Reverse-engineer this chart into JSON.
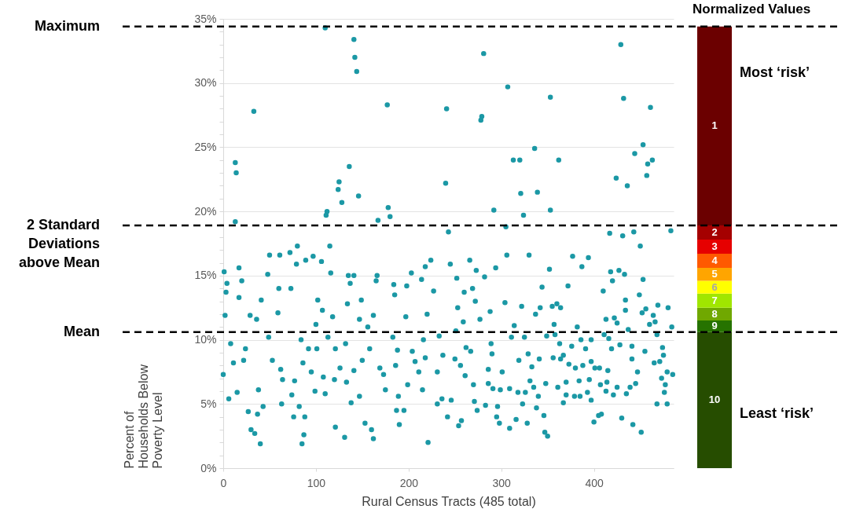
{
  "chart_data": [
    {
      "type": "scatter",
      "xlabel": "Rural Census Tracts (485 total)",
      "ylabel": "Percent of Households Below Poverty Level",
      "color": "#1b98a5",
      "marker": "circle",
      "grid": "y",
      "xlim": [
        0,
        486
      ],
      "xticks": [
        0,
        100,
        200,
        300,
        400
      ],
      "ylim": [
        0,
        35
      ],
      "yticks": [
        {
          "value": 0,
          "label": "0%"
        },
        {
          "value": 1,
          "label": null
        },
        {
          "value": 2,
          "label": null
        },
        {
          "value": 3,
          "label": null
        },
        {
          "value": 4,
          "label": null
        },
        {
          "value": 5,
          "label": "5%"
        },
        {
          "value": 6,
          "label": null
        },
        {
          "value": 7,
          "label": null
        },
        {
          "value": 8,
          "label": null
        },
        {
          "value": 9,
          "label": null
        },
        {
          "value": 10,
          "label": "10%"
        },
        {
          "value": 11,
          "label": null
        },
        {
          "value": 12,
          "label": null
        },
        {
          "value": 13,
          "label": null
        },
        {
          "value": 14,
          "label": null
        },
        {
          "value": 15,
          "label": "15%"
        },
        {
          "value": 16,
          "label": null
        },
        {
          "value": 17,
          "label": null
        },
        {
          "value": 18,
          "label": null
        },
        {
          "value": 19,
          "label": null
        },
        {
          "value": 20,
          "label": "20%"
        },
        {
          "value": 21,
          "label": null
        },
        {
          "value": 22,
          "label": null
        },
        {
          "value": 23,
          "label": null
        },
        {
          "value": 24,
          "label": null
        },
        {
          "value": 25,
          "label": "25%"
        },
        {
          "value": 26,
          "label": null
        },
        {
          "value": 27,
          "label": null
        },
        {
          "value": 28,
          "label": null
        },
        {
          "value": 29,
          "label": null
        },
        {
          "value": 30,
          "label": "30%"
        },
        {
          "value": 31,
          "label": null
        },
        {
          "value": 32,
          "label": null
        },
        {
          "value": 33,
          "label": null
        },
        {
          "value": 34,
          "label": null
        },
        {
          "value": 35,
          "label": "35%"
        }
      ],
      "ref_lines": [
        {
          "axis": "y",
          "value": 34.4,
          "label": "Maximum",
          "color": "#000000",
          "line_style": "dashed"
        },
        {
          "axis": "y",
          "value": 18.9,
          "label": "2 Standard Deviations above Mean",
          "color": "#000000",
          "line_style": "dashed"
        },
        {
          "axis": "y",
          "value": 10.6,
          "label": "Mean",
          "color": "#000000",
          "line_style": "dashed"
        }
      ],
      "x": [
        110,
        141,
        142,
        144,
        33,
        13,
        14,
        13,
        136,
        125,
        124,
        128,
        146,
        112,
        111,
        177,
        178,
        180,
        167,
        241,
        240,
        243,
        281,
        279,
        278,
        307,
        313,
        320,
        353,
        336,
        362,
        321,
        339,
        292,
        324,
        353,
        305,
        429,
        432,
        461,
        453,
        444,
        463,
        458,
        424,
        457,
        436,
        417,
        431,
        443,
        483,
        1,
        4,
        3,
        2,
        8,
        0,
        6,
        17,
        20,
        17,
        11,
        15,
        22,
        24,
        29,
        27,
        30,
        34,
        40,
        36,
        41,
        48,
        50,
        61,
        60,
        72,
        80,
        79,
        73,
        59,
        49,
        53,
        62,
        64,
        63,
        38,
        43,
        37,
        74,
        76,
        87,
        85,
        88,
        82,
        77,
        86,
        92,
        84,
        89,
        97,
        106,
        102,
        107,
        100,
        101,
        95,
        99,
        108,
        110,
        115,
        116,
        113,
        118,
        121,
        120,
        121,
        131,
        126,
        133,
        132,
        134,
        135,
        141,
        137,
        138,
        141,
        149,
        147,
        150,
        147,
        153,
        160,
        162,
        158,
        156,
        166,
        165,
        162,
        169,
        175,
        173,
        184,
        185,
        183,
        188,
        186,
        189,
        190,
        195,
        187,
        198,
        203,
        197,
        204,
        207,
        199,
        214,
        218,
        224,
        227,
        220,
        216,
        218,
        211,
        215,
        221,
        231,
        236,
        242,
        233,
        231,
        237,
        245,
        252,
        260,
        266,
        273,
        269,
        272,
        253,
        277,
        259,
        251,
        262,
        267,
        250,
        256,
        261,
        270,
        246,
        271,
        274,
        257,
        254,
        282,
        294,
        288,
        289,
        290,
        286,
        286,
        291,
        299,
        296,
        295,
        298,
        283,
        306,
        304,
        311,
        314,
        301,
        309,
        318,
        316,
        309,
        319,
        330,
        322,
        325,
        329,
        333,
        331,
        326,
        323,
        328,
        337,
        342,
        344,
        341,
        335,
        340,
        338,
        346,
        347,
        350,
        348,
        349,
        352,
        355,
        360,
        364,
        357,
        358,
        356,
        363,
        361,
        367,
        372,
        377,
        387,
        394,
        376,
        364,
        367,
        373,
        370,
        370,
        380,
        382,
        386,
        391,
        388,
        384,
        379,
        385,
        395,
        397,
        397,
        393,
        397,
        400,
        405,
        408,
        401,
        406,
        407,
        413,
        415,
        414,
        421,
        425,
        410,
        413,
        411,
        416,
        419,
        418,
        420,
        427,
        433,
        434,
        434,
        428,
        422,
        425,
        430,
        435,
        439,
        441,
        441,
        437,
        450,
        453,
        449,
        452,
        460,
        456,
        464,
        468,
        466,
        469,
        480,
        484,
        455,
        447,
        445,
        442,
        451,
        474,
        475,
        465,
        471,
        473,
        477,
        476,
        479,
        485,
        468,
        479
      ],
      "values": [
        34.3,
        33.4,
        32.0,
        30.9,
        27.8,
        23.8,
        23.0,
        19.2,
        23.5,
        22.3,
        21.7,
        20.7,
        21.2,
        20.0,
        19.7,
        28.3,
        20.3,
        19.6,
        19.3,
        28.0,
        22.2,
        18.4,
        32.3,
        27.4,
        27.1,
        29.7,
        24.0,
        24.0,
        28.9,
        24.9,
        24.0,
        21.4,
        21.5,
        20.1,
        19.7,
        20.1,
        18.8,
        33.0,
        28.8,
        28.1,
        25.2,
        24.5,
        24.0,
        23.7,
        22.6,
        22.8,
        22.0,
        18.3,
        18.1,
        18.4,
        18.5,
        15.3,
        14.4,
        13.7,
        11.9,
        9.7,
        7.3,
        5.4,
        15.6,
        14.6,
        13.3,
        8.2,
        5.9,
        8.4,
        9.3,
        11.9,
        4.4,
        3.0,
        2.7,
        1.9,
        11.6,
        13.1,
        15.1,
        16.6,
        16.6,
        14.0,
        16.8,
        17.3,
        15.9,
        14.0,
        12.1,
        10.2,
        8.4,
        7.7,
        6.9,
        5.0,
        6.1,
        4.8,
        4.2,
        5.7,
        4.0,
        2.6,
        1.9,
        4.0,
        4.8,
        6.8,
        8.2,
        9.3,
        10.0,
        16.2,
        16.5,
        16.1,
        13.1,
        12.3,
        11.2,
        9.3,
        7.5,
        6.0,
        7.1,
        5.8,
        17.3,
        15.2,
        10.2,
        11.8,
        9.3,
        6.9,
        3.2,
        2.4,
        7.8,
        6.7,
        9.7,
        12.8,
        15.0,
        15.0,
        14.4,
        5.1,
        7.6,
        13.1,
        11.6,
        8.4,
        5.6,
        3.5,
        3.0,
        2.3,
        9.3,
        11.0,
        15.0,
        14.6,
        11.9,
        7.8,
        6.1,
        7.3,
        14.3,
        13.5,
        10.2,
        9.2,
        8.0,
        5.6,
        3.4,
        4.5,
        4.5,
        14.2,
        15.2,
        11.8,
        9.1,
        8.3,
        6.5,
        14.7,
        15.7,
        16.2,
        13.8,
        12.0,
        10.0,
        8.6,
        7.5,
        6.1,
        2.0,
        5.0,
        5.4,
        4.0,
        10.3,
        7.5,
        8.8,
        15.9,
        14.8,
        13.7,
        16.2,
        15.4,
        14.0,
        13.0,
        12.5,
        11.6,
        11.4,
        10.7,
        9.4,
        9.1,
        8.5,
        8.0,
        7.2,
        6.5,
        5.3,
        5.2,
        4.5,
        3.7,
        3.3,
        14.9,
        15.6,
        12.2,
        9.7,
        8.9,
        7.7,
        6.6,
        6.2,
        6.1,
        4.8,
        4.0,
        3.5,
        4.9,
        16.6,
        12.9,
        10.2,
        11.1,
        7.5,
        6.2,
        5.9,
        3.8,
        3.1,
        8.4,
        16.6,
        12.6,
        10.2,
        8.9,
        7.9,
        6.8,
        5.9,
        5.0,
        3.5,
        12.0,
        12.5,
        14.1,
        8.5,
        6.3,
        5.6,
        4.7,
        4.1,
        2.8,
        2.5,
        6.6,
        10.3,
        15.5,
        12.6,
        12.8,
        12.5,
        11.2,
        10.4,
        8.6,
        9.7,
        6.3,
        5.1,
        14.2,
        16.5,
        15.7,
        16.4,
        9.5,
        8.5,
        8.8,
        8.1,
        6.7,
        5.7,
        7.8,
        11.0,
        10.0,
        9.3,
        8.0,
        6.8,
        5.6,
        5.6,
        6.9,
        8.3,
        10.0,
        5.9,
        5.3,
        3.6,
        4.1,
        4.2,
        7.8,
        7.8,
        6.5,
        6.0,
        7.6,
        6.7,
        5.7,
        6.3,
        13.8,
        11.6,
        10.4,
        10.1,
        9.3,
        15.3,
        14.6,
        15.4,
        15.1,
        13.1,
        12.3,
        9.6,
        11.7,
        11.3,
        3.9,
        5.8,
        6.3,
        8.5,
        9.5,
        10.8,
        17.3,
        14.7,
        13.5,
        12.1,
        11.2,
        12.4,
        11.9,
        10.4,
        11.4,
        12.7,
        12.5,
        11.0,
        9.1,
        7.5,
        6.6,
        3.4,
        2.8,
        9.4,
        8.8,
        8.2,
        8.3,
        7.0,
        6.5,
        5.9,
        7.5,
        7.3,
        5.0,
        5.0
      ]
    },
    {
      "type": "bar",
      "stacked": true,
      "title": "Normalized Values",
      "annotations": [
        "Most ‘risk’",
        "Least ‘risk’"
      ],
      "categories": [
        null
      ],
      "ylim": [
        0,
        35
      ],
      "tick_labels": false,
      "series": [
        {
          "name": "10",
          "color": "#264d00",
          "values": [
            10.6
          ]
        },
        {
          "name": "9",
          "color": "#267300",
          "values": [
            0.9
          ]
        },
        {
          "name": "8",
          "color": "#70a800",
          "values": [
            1.0
          ]
        },
        {
          "name": "7",
          "color": "#a0e600",
          "values": [
            1.1
          ]
        },
        {
          "name": "6",
          "color": "#ffff00",
          "values": [
            1.0
          ]
        },
        {
          "name": "5",
          "color": "#ffa500",
          "values": [
            1.0
          ]
        },
        {
          "name": "4",
          "color": "#ff5a00",
          "values": [
            1.1
          ]
        },
        {
          "name": "3",
          "color": "#e60000",
          "values": [
            1.1
          ]
        },
        {
          "name": "2",
          "color": "#a50000",
          "values": [
            1.1
          ]
        },
        {
          "name": "1",
          "color": "#6b0000",
          "values": [
            15.5
          ]
        }
      ]
    }
  ]
}
